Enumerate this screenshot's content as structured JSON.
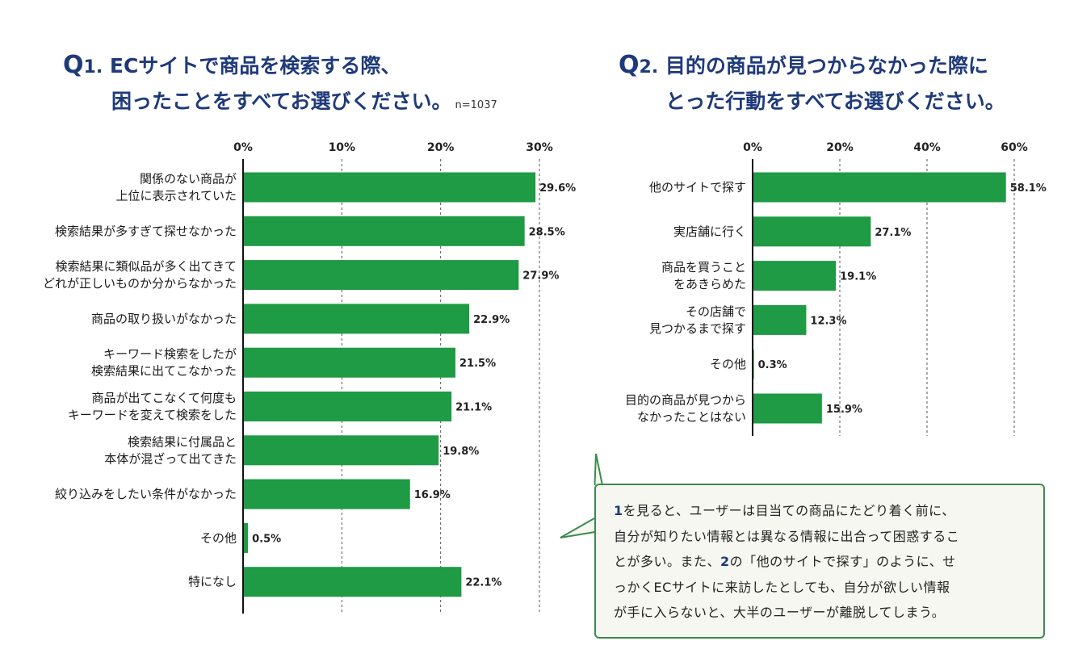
{
  "q1": {
    "title_prefix": "Q",
    "title_num": "1.",
    "title_line1": "ECサイトで商品を検索する際、",
    "title_line2": "困ったことをすべてお選びください。",
    "n_label": "n=1037"
  },
  "q2": {
    "title_prefix": "Q",
    "title_num": "2.",
    "title_line1": "目的の商品が見つからなかった際に",
    "title_line2": "とった行動をすべてお選びください。"
  },
  "callout": {
    "ref1": "1",
    "text1": "を見ると、ユーザーは目当ての商品にたどり着く前に、",
    "text2": "自分が知りたい情報とは異なる情報に出合って困惑するこ",
    "text3a": "とが多い。また、",
    "ref2": "2",
    "text3b": "の「他のサイトで探す」のように、せ",
    "text4": "っかくECサイトに来訪したとしても、自分が欲しい情報",
    "text5": "が手に入らないと、大半のユーザーが離脱してしまう。"
  },
  "chart_data": [
    {
      "type": "bar",
      "orientation": "horizontal",
      "color": "#1f9a45",
      "categories": [
        [
          "関係のない商品が",
          "上位に表示されていた"
        ],
        [
          "検索結果が多すぎて探せなかった"
        ],
        [
          "検索結果に類似品が多く出てきて",
          "どれが正しいものか分からなかった"
        ],
        [
          "商品の取り扱いがなかった"
        ],
        [
          "キーワード検索をしたが",
          "検索結果に出てこなかった"
        ],
        [
          "商品が出てこなくて何度も",
          "キーワードを変えて検索をした"
        ],
        [
          "検索結果に付属品と",
          "本体が混ざって出てきた"
        ],
        [
          "絞り込みをしたい条件がなかった"
        ],
        [
          "その他"
        ],
        [
          "特になし"
        ]
      ],
      "values": [
        29.6,
        28.5,
        27.9,
        22.9,
        21.5,
        21.1,
        19.8,
        16.9,
        0.5,
        22.1
      ],
      "value_labels": [
        "29.6%",
        "28.5%",
        "27.9%",
        "22.9%",
        "21.5%",
        "21.1%",
        "19.8%",
        "16.9%",
        "0.5%",
        "22.1%"
      ],
      "xlim": [
        0,
        30
      ],
      "ticks": [
        0,
        10,
        20,
        30
      ],
      "tick_labels": [
        "0%",
        "10%",
        "20%",
        "30%"
      ],
      "grid": "dashed vertical"
    },
    {
      "type": "bar",
      "orientation": "horizontal",
      "color": "#1f9a45",
      "categories": [
        [
          "他のサイトで探す"
        ],
        [
          "実店舗に行く"
        ],
        [
          "商品を買うこと",
          "をあきらめた"
        ],
        [
          "その店舗で",
          "見つかるまで探す"
        ],
        [
          "その他"
        ],
        [
          "目的の商品が見つから",
          "なかったことはない"
        ]
      ],
      "values": [
        58.1,
        27.1,
        19.1,
        12.3,
        0.3,
        15.9
      ],
      "value_labels": [
        "58.1%",
        "27.1%",
        "19.1%",
        "12.3%",
        "0.3%",
        "15.9%"
      ],
      "xlim": [
        0,
        60
      ],
      "ticks": [
        0,
        20,
        40,
        60
      ],
      "tick_labels": [
        "0%",
        "20%",
        "40%",
        "60%"
      ],
      "grid": "dashed vertical"
    }
  ]
}
